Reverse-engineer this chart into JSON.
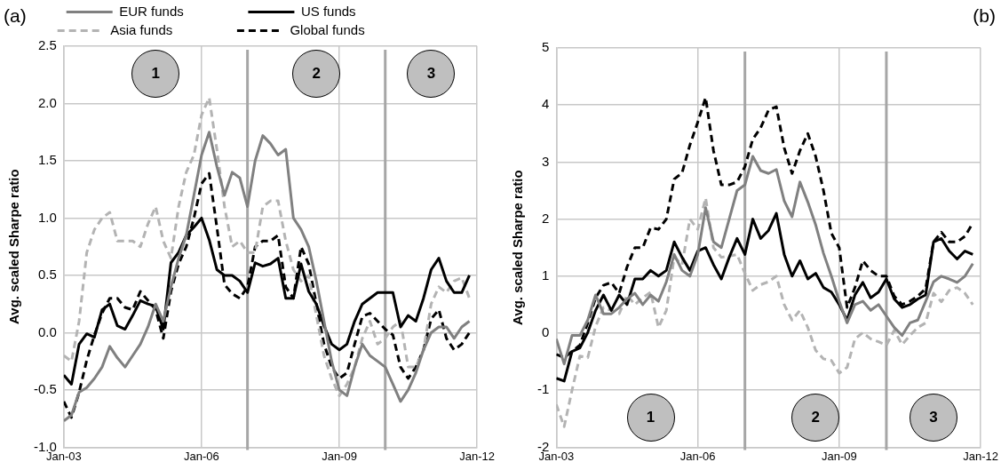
{
  "chart_data": [
    {
      "type": "line",
      "title": "(a)",
      "ylabel": "Avg. scaled Sharpe ratio",
      "x": [
        "2003-01",
        "2003-03",
        "2003-05",
        "2003-07",
        "2003-09",
        "2003-11",
        "2004-01",
        "2004-03",
        "2004-05",
        "2004-07",
        "2004-09",
        "2004-11",
        "2005-01",
        "2005-03",
        "2005-05",
        "2005-07",
        "2005-09",
        "2005-11",
        "2006-01",
        "2006-03",
        "2006-05",
        "2006-07",
        "2006-09",
        "2006-11",
        "2007-01",
        "2007-03",
        "2007-05",
        "2007-07",
        "2007-09",
        "2007-11",
        "2008-01",
        "2008-03",
        "2008-05",
        "2008-07",
        "2008-09",
        "2008-11",
        "2009-01",
        "2009-03",
        "2009-05",
        "2009-07",
        "2009-09",
        "2009-11",
        "2010-01",
        "2010-03",
        "2010-05",
        "2010-07",
        "2010-09",
        "2010-11",
        "2011-01",
        "2011-03",
        "2011-05",
        "2011-07",
        "2011-09",
        "2011-11"
      ],
      "series": [
        {
          "name": "EUR funds",
          "color": "#808080",
          "line_style": "solid",
          "values": [
            -0.77,
            -0.72,
            -0.52,
            -0.48,
            -0.4,
            -0.3,
            -0.12,
            -0.22,
            -0.3,
            -0.2,
            -0.1,
            0.05,
            0.25,
            0.1,
            0.4,
            0.65,
            0.85,
            1.2,
            1.55,
            1.75,
            1.45,
            1.2,
            1.4,
            1.35,
            1.1,
            1.5,
            1.72,
            1.65,
            1.55,
            1.6,
            1.0,
            0.9,
            0.75,
            0.45,
            0.1,
            -0.25,
            -0.5,
            -0.55,
            -0.3,
            -0.1,
            -0.2,
            -0.25,
            -0.3,
            -0.45,
            -0.6,
            -0.5,
            -0.35,
            -0.15,
            0.0,
            0.05,
            0.05,
            -0.05,
            0.05,
            0.1
          ]
        },
        {
          "name": "US funds",
          "color": "#000000",
          "line_style": "solid",
          "values": [
            -0.37,
            -0.45,
            -0.1,
            -0.01,
            -0.04,
            0.2,
            0.25,
            0.06,
            0.03,
            0.15,
            0.28,
            0.25,
            0.23,
            0.03,
            0.61,
            0.7,
            0.85,
            0.92,
            1.0,
            0.81,
            0.55,
            0.5,
            0.5,
            0.45,
            0.35,
            0.61,
            0.58,
            0.6,
            0.65,
            0.3,
            0.3,
            0.6,
            0.36,
            0.25,
            0.06,
            -0.1,
            -0.15,
            -0.1,
            0.1,
            0.25,
            0.3,
            0.35,
            0.35,
            0.35,
            0.05,
            0.15,
            0.1,
            0.3,
            0.55,
            0.65,
            0.45,
            0.35,
            0.35,
            0.5
          ]
        },
        {
          "name": "Asia funds",
          "color": "#b3b3b3",
          "line_style": "dashed",
          "values": [
            -0.2,
            -0.25,
            0.1,
            0.7,
            0.9,
            1.0,
            1.05,
            0.8,
            0.8,
            0.8,
            0.75,
            0.95,
            1.1,
            0.8,
            0.65,
            1.1,
            1.4,
            1.55,
            1.9,
            2.05,
            1.6,
            1.1,
            0.75,
            0.8,
            0.7,
            0.7,
            1.1,
            1.15,
            1.15,
            0.8,
            0.55,
            0.45,
            0.5,
            0.15,
            -0.2,
            -0.4,
            -0.55,
            -0.45,
            -0.3,
            -0.05,
            0.1,
            -0.1,
            -0.05,
            0.05,
            0.1,
            -0.3,
            -0.3,
            -0.15,
            0.25,
            0.4,
            0.35,
            0.45,
            0.48,
            0.3
          ]
        },
        {
          "name": "Global funds",
          "color": "#000000",
          "line_style": "dashed",
          "values": [
            -0.6,
            -0.74,
            -0.52,
            -0.24,
            -0.02,
            0.17,
            0.3,
            0.3,
            0.22,
            0.2,
            0.36,
            0.28,
            0.2,
            -0.05,
            0.36,
            0.6,
            0.75,
            1.0,
            1.3,
            1.39,
            0.92,
            0.42,
            0.34,
            0.3,
            0.4,
            0.75,
            0.8,
            0.8,
            0.85,
            0.4,
            0.3,
            0.75,
            0.6,
            0.25,
            -0.1,
            -0.3,
            -0.4,
            -0.35,
            -0.1,
            0.14,
            0.17,
            0.1,
            0.03,
            -0.02,
            -0.3,
            -0.4,
            -0.3,
            -0.15,
            0.12,
            0.2,
            -0.05,
            -0.15,
            -0.1,
            0.0
          ]
        }
      ],
      "xlim": [
        "2003-01",
        "2012-01"
      ],
      "xticks": [
        {
          "value": "2003-01",
          "label": "Jan-03"
        },
        {
          "value": "2006-01",
          "label": "Jan-06"
        },
        {
          "value": "2009-01",
          "label": "Jan-09"
        },
        {
          "value": "2012-01",
          "label": "Jan-12"
        }
      ],
      "ylim": [
        -1.0,
        2.5
      ],
      "yticks": [
        {
          "value": -1,
          "label": "-1.0"
        },
        -0.5,
        {
          "value": 0,
          "label": "0.0"
        },
        0.5,
        {
          "value": 1,
          "label": "1.0"
        },
        1.5,
        {
          "value": 2,
          "label": "2.0"
        },
        2.5
      ],
      "ref_lines": [
        {
          "axis": "x",
          "value": "2007-01",
          "color": "#a6a6a6"
        },
        {
          "axis": "x",
          "value": "2010-01",
          "color": "#a6a6a6"
        }
      ],
      "annotations": [
        "1",
        "2",
        "3"
      ],
      "grid": true,
      "legend": "top"
    },
    {
      "type": "line",
      "title": "(b)",
      "ylabel": "Avg. scaled Sharpe ratio",
      "x": [
        "2003-01",
        "2003-03",
        "2003-05",
        "2003-07",
        "2003-09",
        "2003-11",
        "2004-01",
        "2004-03",
        "2004-05",
        "2004-07",
        "2004-09",
        "2004-11",
        "2005-01",
        "2005-03",
        "2005-05",
        "2005-07",
        "2005-09",
        "2005-11",
        "2006-01",
        "2006-03",
        "2006-05",
        "2006-07",
        "2006-09",
        "2006-11",
        "2007-01",
        "2007-03",
        "2007-05",
        "2007-07",
        "2007-09",
        "2007-11",
        "2008-01",
        "2008-03",
        "2008-05",
        "2008-07",
        "2008-09",
        "2008-11",
        "2009-01",
        "2009-03",
        "2009-05",
        "2009-07",
        "2009-09",
        "2009-11",
        "2010-01",
        "2010-03",
        "2010-05",
        "2010-07",
        "2010-09",
        "2010-11",
        "2011-01",
        "2011-03",
        "2011-05",
        "2011-07",
        "2011-09",
        "2011-11"
      ],
      "series": [
        {
          "color": "#808080",
          "line_style": "solid",
          "values": [
            -0.1,
            -0.54,
            -0.04,
            -0.04,
            0.23,
            0.67,
            0.34,
            0.34,
            0.45,
            0.6,
            0.7,
            0.5,
            0.67,
            0.56,
            0.9,
            1.38,
            1.1,
            1.0,
            1.38,
            2.2,
            1.6,
            1.5,
            2.0,
            2.5,
            2.6,
            3.1,
            2.85,
            2.8,
            2.87,
            2.32,
            2.04,
            2.65,
            2.3,
            1.9,
            1.4,
            1.0,
            0.56,
            0.18,
            0.5,
            0.56,
            0.4,
            0.5,
            0.3,
            0.1,
            -0.04,
            0.18,
            0.23,
            0.56,
            0.9,
            1.0,
            0.95,
            0.89,
            1.0,
            1.22
          ]
        },
        {
          "color": "#000000",
          "line_style": "solid",
          "values": [
            -0.79,
            -0.84,
            -0.32,
            -0.26,
            0.01,
            0.4,
            0.67,
            0.4,
            0.67,
            0.5,
            0.95,
            0.95,
            1.1,
            1.0,
            1.1,
            1.6,
            1.33,
            1.1,
            1.44,
            1.5,
            1.2,
            0.95,
            1.33,
            1.66,
            1.38,
            2.0,
            1.66,
            1.8,
            2.1,
            1.38,
            1.0,
            1.27,
            0.95,
            1.05,
            0.8,
            0.72,
            0.5,
            0.23,
            0.67,
            0.89,
            0.62,
            0.72,
            0.95,
            0.6,
            0.45,
            0.5,
            0.6,
            0.67,
            1.6,
            1.66,
            1.44,
            1.3,
            1.44,
            1.38
          ]
        },
        {
          "color": "#b3b3b3",
          "line_style": "dashed",
          "values": [
            -1.25,
            -1.64,
            -1.0,
            -0.4,
            -0.43,
            0.12,
            0.45,
            0.4,
            0.34,
            0.67,
            0.5,
            0.62,
            0.72,
            0.1,
            0.4,
            1.33,
            1.2,
            2.0,
            1.82,
            2.37,
            1.5,
            1.33,
            1.35,
            1.38,
            1.05,
            0.75,
            0.85,
            0.9,
            1.0,
            0.5,
            0.23,
            0.4,
            0.1,
            -0.3,
            -0.45,
            -0.48,
            -0.7,
            -0.6,
            -0.1,
            0.01,
            -0.1,
            -0.15,
            -0.21,
            0.05,
            -0.2,
            -0.04,
            0.1,
            0.18,
            0.7,
            0.55,
            0.75,
            0.8,
            0.7,
            0.5
          ]
        },
        {
          "color": "#000000",
          "line_style": "dashed",
          "values": [
            -0.37,
            -0.43,
            -0.32,
            -0.21,
            0.18,
            0.62,
            0.84,
            0.89,
            0.7,
            1.16,
            1.5,
            1.5,
            1.85,
            1.82,
            2.0,
            2.7,
            2.81,
            3.3,
            3.7,
            4.13,
            3.2,
            2.6,
            2.6,
            2.65,
            2.92,
            3.4,
            3.6,
            3.91,
            3.97,
            3.25,
            2.8,
            3.2,
            3.5,
            3.1,
            2.5,
            1.75,
            1.5,
            0.45,
            0.8,
            1.27,
            1.1,
            1.0,
            1.0,
            0.65,
            0.5,
            0.56,
            0.65,
            0.78,
            1.6,
            1.77,
            1.6,
            1.6,
            1.7,
            1.93
          ]
        }
      ],
      "xlim": [
        "2003-01",
        "2012-01"
      ],
      "xticks": [
        {
          "value": "2003-01",
          "label": "Jan-03"
        },
        {
          "value": "2006-01",
          "label": "Jan-06"
        },
        {
          "value": "2009-01",
          "label": "Jan-09"
        },
        {
          "value": "2012-01",
          "label": "Jan-12"
        }
      ],
      "ylim": [
        -2,
        5
      ],
      "yticks": [
        -2,
        -1,
        0,
        1,
        2,
        3,
        4,
        5
      ],
      "ref_lines": [
        {
          "axis": "x",
          "value": "2007-01",
          "color": "#a6a6a6"
        },
        {
          "axis": "x",
          "value": "2010-01",
          "color": "#a6a6a6"
        }
      ],
      "annotations": [
        "1",
        "2",
        "3"
      ],
      "grid": true
    }
  ]
}
